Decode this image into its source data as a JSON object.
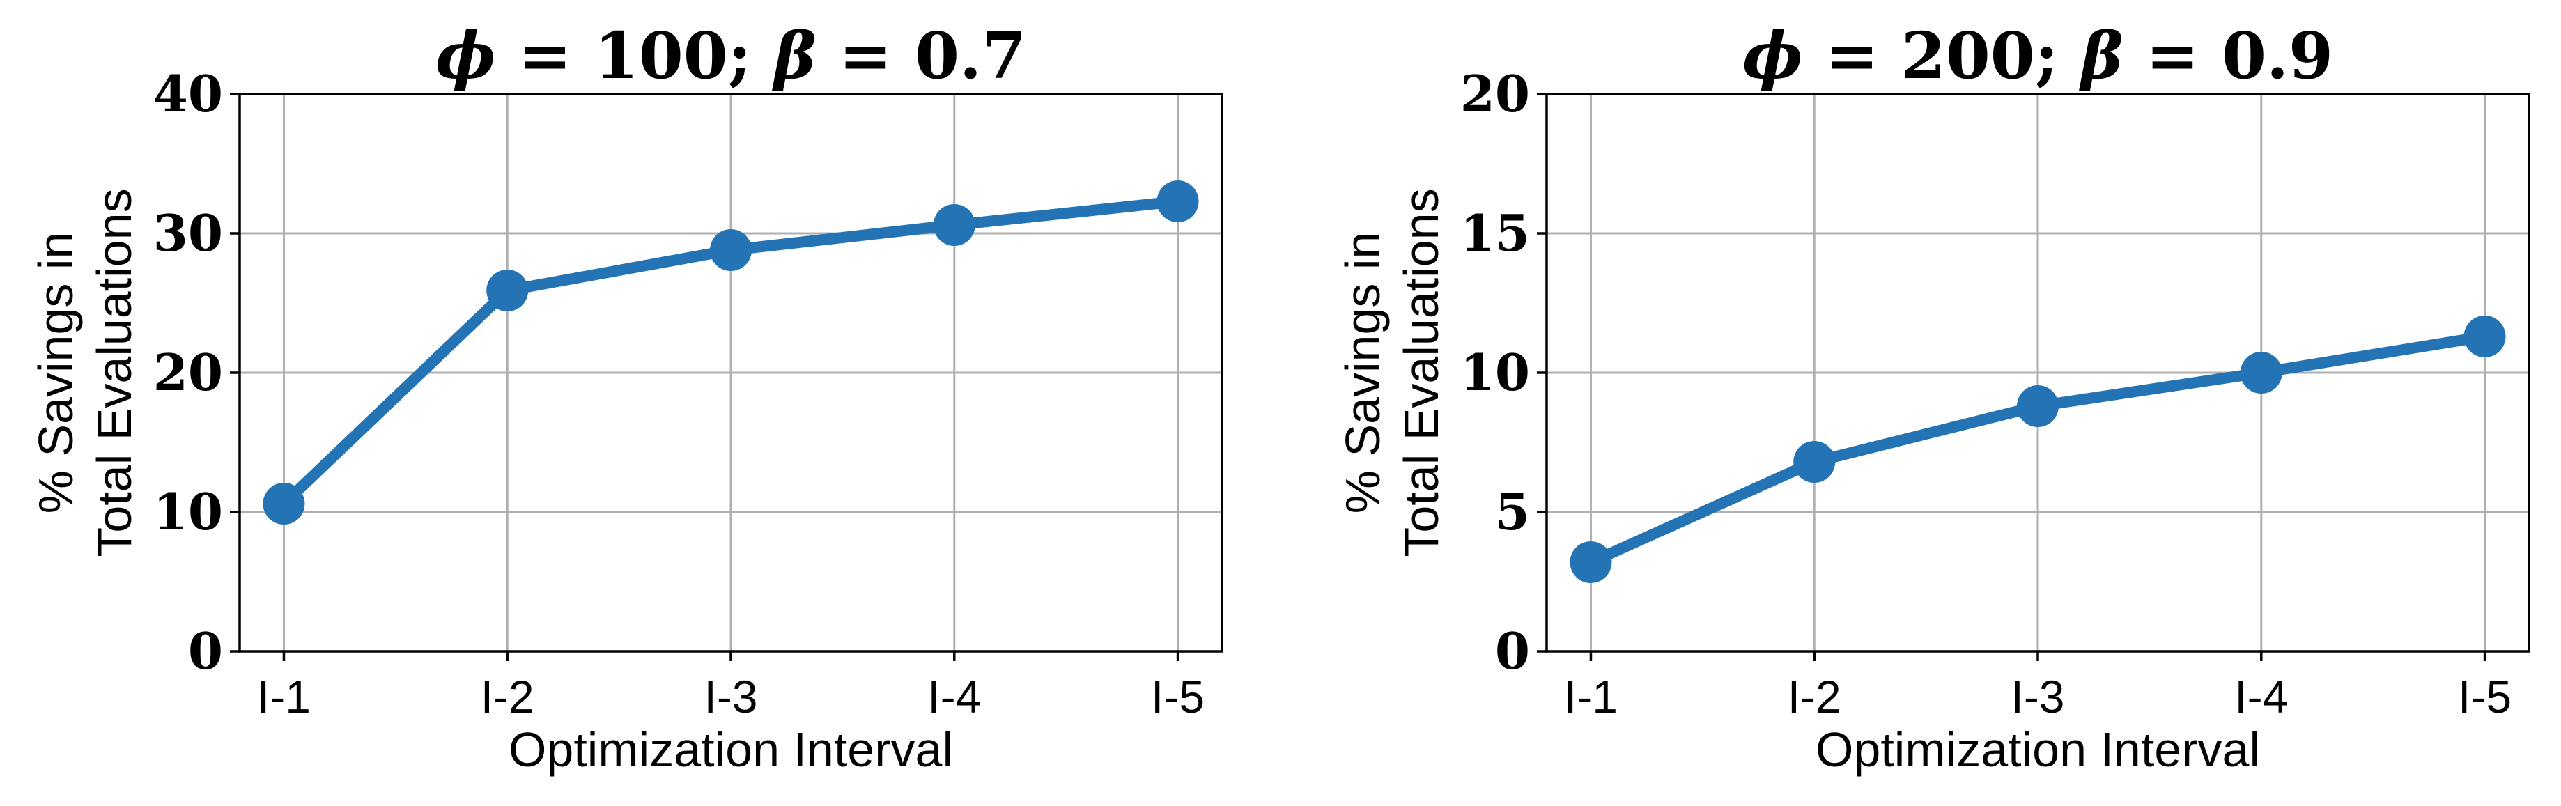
{
  "chart_data": [
    {
      "type": "line",
      "title_parts": [
        "ϕ",
        " = 100; ",
        "β",
        " = 0.7"
      ],
      "xlabel": "Optimization Interval",
      "ylabel_lines": [
        "% Savings in",
        "Total Evaluations"
      ],
      "categories": [
        "I-1",
        "I-2",
        "I-3",
        "I-4",
        "I-5"
      ],
      "series": [
        {
          "values": [
            10.6,
            25.9,
            28.8,
            30.6,
            32.3
          ]
        }
      ],
      "ylim": [
        0,
        40
      ],
      "yticks": [
        "0",
        "10",
        "20",
        "30",
        "40"
      ],
      "grid": true,
      "color": "#2474b5"
    },
    {
      "type": "line",
      "title_parts": [
        "ϕ",
        " = 200; ",
        "β",
        " = 0.9"
      ],
      "xlabel": "Optimization Interval",
      "ylabel_lines": [
        "% Savings in",
        "Total Evaluations"
      ],
      "categories": [
        "I-1",
        "I-2",
        "I-3",
        "I-4",
        "I-5"
      ],
      "series": [
        {
          "values": [
            3.2,
            6.8,
            8.8,
            10.0,
            11.3
          ]
        }
      ],
      "ylim": [
        0,
        20
      ],
      "yticks": [
        "0",
        "5",
        "10",
        "15",
        "20"
      ],
      "grid": true,
      "color": "#2474b5"
    }
  ]
}
